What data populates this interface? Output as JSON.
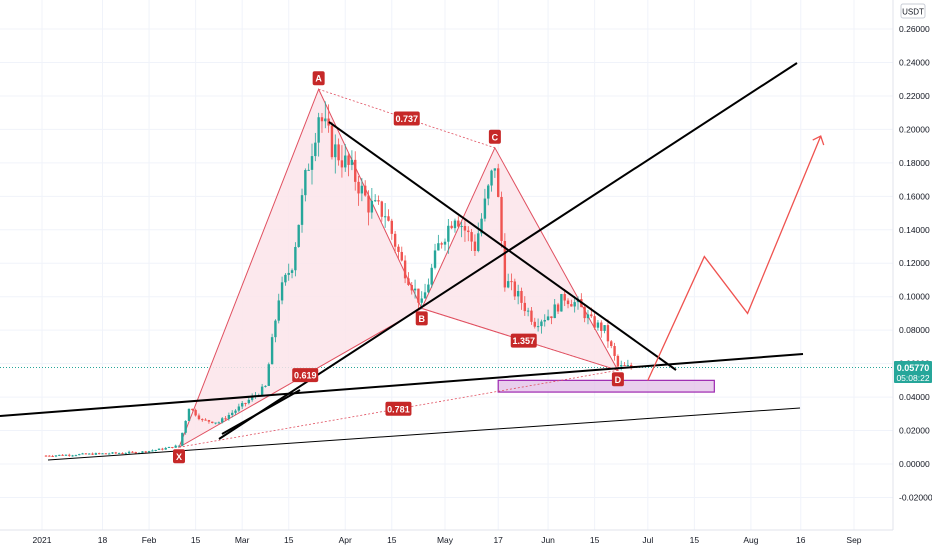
{
  "chart_data": {
    "type": "candlestick",
    "currency": "USDT",
    "last_price": "0.05770",
    "countdown": "05:08:22",
    "y_ticks": [
      "0.26000",
      "0.24000",
      "0.22000",
      "0.20000",
      "0.18000",
      "0.16000",
      "0.14000",
      "0.12000",
      "0.10000",
      "0.08000",
      "0.06000",
      "0.04000",
      "0.02000",
      "0.00000",
      "-0.02000"
    ],
    "y_tick_values": [
      0.26,
      0.24,
      0.22,
      0.2,
      0.18,
      0.16,
      0.14,
      0.12,
      0.1,
      0.08,
      0.06,
      0.04,
      0.02,
      0.0,
      -0.02
    ],
    "x_ticks": [
      "2021",
      "18",
      "Feb",
      "15",
      "Mar",
      "15",
      "Apr",
      "15",
      "May",
      "17",
      "Jun",
      "15",
      "Jul",
      "15",
      "Aug",
      "16",
      "Sep"
    ],
    "pattern_points": [
      {
        "label": "X",
        "date": "2021-02-10",
        "value": 0.01
      },
      {
        "label": "A",
        "date": "2021-03-24",
        "value": 0.224
      },
      {
        "label": "B",
        "date": "2021-04-24",
        "value": 0.093
      },
      {
        "label": "C",
        "date": "2021-05-16",
        "value": 0.189
      },
      {
        "label": "D",
        "date": "2021-06-22",
        "value": 0.056
      }
    ],
    "ratios": [
      {
        "label": "0.619"
      },
      {
        "label": "0.737"
      },
      {
        "label": "1.357"
      },
      {
        "label": "0.781"
      }
    ],
    "target_zone": {
      "from": "2021-05-17",
      "to": "2021-07-21",
      "low": 0.043,
      "high": 0.05
    },
    "projection_path": [
      {
        "date": "2021-07-01",
        "value": 0.05
      },
      {
        "date": "2021-07-18",
        "value": 0.124
      },
      {
        "date": "2021-07-31",
        "value": 0.09
      },
      {
        "date": "2021-08-22",
        "value": 0.196
      }
    ],
    "price_series": [
      {
        "date": "2021-01-01",
        "value": 0.005
      },
      {
        "date": "2021-01-15",
        "value": 0.006
      },
      {
        "date": "2021-01-29",
        "value": 0.007
      },
      {
        "date": "2021-02-05",
        "value": 0.009
      },
      {
        "date": "2021-02-10",
        "value": 0.011
      },
      {
        "date": "2021-02-13",
        "value": 0.034
      },
      {
        "date": "2021-02-17",
        "value": 0.026
      },
      {
        "date": "2021-02-22",
        "value": 0.025
      },
      {
        "date": "2021-03-01",
        "value": 0.035
      },
      {
        "date": "2021-03-08",
        "value": 0.046
      },
      {
        "date": "2021-03-12",
        "value": 0.1
      },
      {
        "date": "2021-03-16",
        "value": 0.12
      },
      {
        "date": "2021-03-20",
        "value": 0.17
      },
      {
        "date": "2021-03-24",
        "value": 0.21
      },
      {
        "date": "2021-03-28",
        "value": 0.19
      },
      {
        "date": "2021-04-03",
        "value": 0.175
      },
      {
        "date": "2021-04-08",
        "value": 0.155
      },
      {
        "date": "2021-04-13",
        "value": 0.15
      },
      {
        "date": "2021-04-18",
        "value": 0.12
      },
      {
        "date": "2021-04-24",
        "value": 0.095
      },
      {
        "date": "2021-04-29",
        "value": 0.13
      },
      {
        "date": "2021-05-04",
        "value": 0.15
      },
      {
        "date": "2021-05-10",
        "value": 0.13
      },
      {
        "date": "2021-05-16",
        "value": 0.18
      },
      {
        "date": "2021-05-19",
        "value": 0.11
      },
      {
        "date": "2021-05-23",
        "value": 0.1
      },
      {
        "date": "2021-05-28",
        "value": 0.085
      },
      {
        "date": "2021-06-02",
        "value": 0.09
      },
      {
        "date": "2021-06-06",
        "value": 0.1
      },
      {
        "date": "2021-06-10",
        "value": 0.095
      },
      {
        "date": "2021-06-14",
        "value": 0.085
      },
      {
        "date": "2021-06-18",
        "value": 0.08
      },
      {
        "date": "2021-06-22",
        "value": 0.058
      },
      {
        "date": "2021-06-26",
        "value": 0.0577
      }
    ],
    "colors": {
      "up": "#26a69a",
      "down": "#ef5350",
      "pattern": "#e05060",
      "pattern_fill": "#fce4ea",
      "label_bg": "#c62828",
      "last_price": "#26a69a",
      "zone_fill": "#e1bee7",
      "zone_stroke": "#9c27b0",
      "trendline": "#000000",
      "axis_text": "#131722",
      "grid": "#f0f3fa"
    }
  }
}
